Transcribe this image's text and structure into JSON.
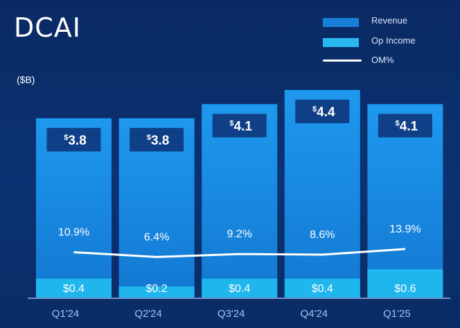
{
  "page": {
    "title": "DCAI",
    "unit": "($B)"
  },
  "legend": {
    "revenue": "Revenue",
    "op_income": "Op Income",
    "om": "OM%"
  },
  "colors": {
    "revenue": "#1a8fe6",
    "op_income": "#1fb6ee",
    "om_line": "#ffffff",
    "label_box": "#0f3f86",
    "axis": "#8fb7e8",
    "tick_text": "#9fc4ee"
  },
  "chart_data": {
    "type": "bar",
    "title": "DCAI",
    "ylabel": "($B)",
    "categories": [
      "Q1'24",
      "Q2'24",
      "Q3'24",
      "Q4'24",
      "Q1'25"
    ],
    "ylim": [
      0,
      4.4
    ],
    "series": [
      {
        "name": "Revenue",
        "values": [
          3.8,
          3.8,
          4.1,
          4.4,
          4.1
        ],
        "labels": [
          "3.8",
          "3.8",
          "4.1",
          "4.4",
          "4.1"
        ],
        "label_prefix": "$"
      },
      {
        "name": "Op Income",
        "values": [
          0.4,
          0.2,
          0.4,
          0.4,
          0.6
        ],
        "labels": [
          "$0.4",
          "$0.2",
          "$0.4",
          "$0.4",
          "$0.6"
        ]
      },
      {
        "name": "OM%",
        "type": "line",
        "values": [
          10.9,
          6.4,
          9.2,
          8.6,
          13.9
        ],
        "labels": [
          "10.9%",
          "6.4%",
          "9.2%",
          "8.6%",
          "13.9%"
        ]
      }
    ]
  }
}
